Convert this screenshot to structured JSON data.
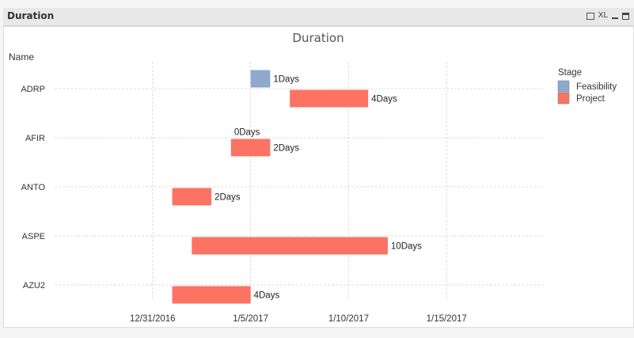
{
  "window": {
    "title": "Duration",
    "icons": [
      "print-icon",
      "xl-export-icon",
      "minimize-icon",
      "maximize-icon"
    ],
    "xl_label": "XL"
  },
  "chart_data": {
    "type": "bar",
    "orientation": "gantt",
    "title": "Duration",
    "dimension_label": "Name",
    "categories": [
      "ADRP",
      "AFIR",
      "ANTO",
      "ASPE",
      "AZU2"
    ],
    "x_axis": {
      "type": "date",
      "ticks": [
        "12/31/2016",
        "1/5/2017",
        "1/10/2017",
        "1/15/2017"
      ],
      "tick_dates": [
        "2016-12-31",
        "2017-01-05",
        "2017-01-10",
        "2017-01-15"
      ],
      "range": [
        "2016-12-26",
        "2017-01-20"
      ],
      "grid": true
    },
    "legend": {
      "title": "Stage",
      "placement": "right",
      "items": [
        {
          "name": "Feasibility",
          "color": "#8ea9cc"
        },
        {
          "name": "Project",
          "color": "#fc7363"
        }
      ]
    },
    "series": [
      {
        "name": "Feasibility",
        "color": "#8ea9cc",
        "bars": [
          {
            "category": "ADRP",
            "start": "2017-01-05",
            "end": "2017-01-06",
            "label": "1Days"
          },
          {
            "category": "AFIR",
            "start": "2017-01-04",
            "end": "2017-01-04",
            "label": "0Days"
          }
        ]
      },
      {
        "name": "Project",
        "color": "#fc7363",
        "bars": [
          {
            "category": "ADRP",
            "start": "2017-01-07",
            "end": "2017-01-11",
            "label": "4Days"
          },
          {
            "category": "AFIR",
            "start": "2017-01-04",
            "end": "2017-01-06",
            "label": "2Days"
          },
          {
            "category": "ANTO",
            "start": "2017-01-01",
            "end": "2017-01-03",
            "label": "2Days"
          },
          {
            "category": "ASPE",
            "start": "2017-01-02",
            "end": "2017-01-12",
            "label": "10Days"
          },
          {
            "category": "AZU2",
            "start": "2017-01-01",
            "end": "2017-01-05",
            "label": "4Days"
          }
        ]
      }
    ]
  }
}
